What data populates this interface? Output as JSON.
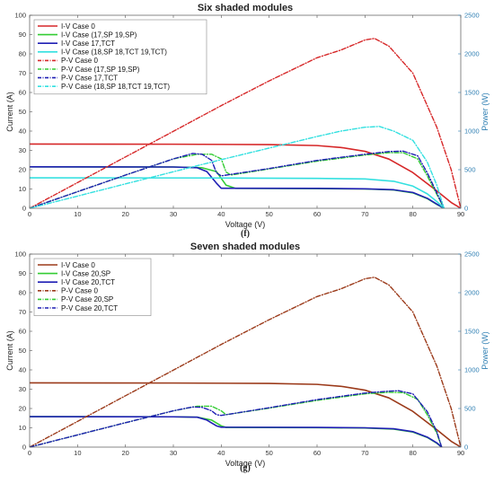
{
  "chart_data": [
    {
      "type": "line",
      "title": "Six shaded modules",
      "xlabel": "Voltage (V)",
      "ylabel": "Current (A)",
      "y2label": "Power (W)",
      "caption": "(f)",
      "xlim": [
        0,
        90
      ],
      "ylim": [
        0,
        100
      ],
      "y2lim": [
        0,
        2500
      ],
      "xticks": [
        0,
        10,
        20,
        30,
        40,
        50,
        60,
        70,
        80,
        90
      ],
      "yticks": [
        0,
        10,
        20,
        30,
        40,
        50,
        60,
        70,
        80,
        90,
        100
      ],
      "y2ticks": [
        0,
        500,
        1000,
        1500,
        2000,
        2500
      ],
      "legend_position": "top-left",
      "series": [
        {
          "name": "I-V Case 0",
          "axis": "left",
          "style": "solid",
          "color": "#d62728",
          "points": [
            [
              0,
              33.3
            ],
            [
              30,
              33.2
            ],
            [
              50,
              33.0
            ],
            [
              60,
              32.5
            ],
            [
              65,
              31.5
            ],
            [
              70,
              29.5
            ],
            [
              75,
              25.5
            ],
            [
              80,
              18.5
            ],
            [
              85,
              9
            ],
            [
              88,
              3
            ],
            [
              90,
              0
            ]
          ]
        },
        {
          "name": "I-V Case (17,SP 19,SP)",
          "axis": "left",
          "style": "solid",
          "color": "#33cc33",
          "points": [
            [
              0,
              21.5
            ],
            [
              30,
              21.4
            ],
            [
              36,
              21
            ],
            [
              39,
              19
            ],
            [
              41,
              12
            ],
            [
              43,
              10.3
            ],
            [
              60,
              10.2
            ],
            [
              70,
              10
            ],
            [
              76,
              9.5
            ],
            [
              80,
              8
            ],
            [
              83,
              5
            ],
            [
              85,
              2
            ],
            [
              86.5,
              0
            ]
          ]
        },
        {
          "name": "I-V Case 17,TCT",
          "axis": "left",
          "style": "solid",
          "color": "#1f1fb4",
          "points": [
            [
              0,
              21.5
            ],
            [
              30,
              21.4
            ],
            [
              35,
              21
            ],
            [
              37,
              19
            ],
            [
              39,
              13
            ],
            [
              40,
              10.4
            ],
            [
              60,
              10.3
            ],
            [
              70,
              10.1
            ],
            [
              76,
              9.6
            ],
            [
              80,
              8.2
            ],
            [
              83,
              5.2
            ],
            [
              85,
              2.2
            ],
            [
              86.5,
              0
            ]
          ]
        },
        {
          "name": "I-V Case (18,SP 18,TCT 19,TCT)",
          "axis": "left",
          "style": "solid",
          "color": "#33e0e0",
          "points": [
            [
              0,
              15.8
            ],
            [
              40,
              15.7
            ],
            [
              60,
              15.5
            ],
            [
              70,
              15.2
            ],
            [
              76,
              14
            ],
            [
              80,
              11.5
            ],
            [
              83,
              7.5
            ],
            [
              85,
              3.5
            ],
            [
              86.5,
              0
            ]
          ]
        },
        {
          "name": "P-V Case 0",
          "axis": "right",
          "style": "dashdot",
          "color": "#d62728",
          "points": [
            [
              0,
              0
            ],
            [
              10,
              333
            ],
            [
              20,
              665
            ],
            [
              30,
              997
            ],
            [
              40,
              1330
            ],
            [
              50,
              1650
            ],
            [
              60,
              1950
            ],
            [
              65,
              2050
            ],
            [
              70,
              2180
            ],
            [
              72,
              2200
            ],
            [
              75,
              2100
            ],
            [
              80,
              1750
            ],
            [
              85,
              1050
            ],
            [
              88,
              500
            ],
            [
              90,
              0
            ]
          ]
        },
        {
          "name": "P-V Case (17,SP 19,SP)",
          "axis": "right",
          "style": "dashdot",
          "color": "#33cc33",
          "points": [
            [
              0,
              0
            ],
            [
              10,
              215
            ],
            [
              20,
              430
            ],
            [
              30,
              640
            ],
            [
              35,
              700
            ],
            [
              38,
              700
            ],
            [
              40,
              640
            ],
            [
              41,
              470
            ],
            [
              42,
              430
            ],
            [
              50,
              510
            ],
            [
              60,
              610
            ],
            [
              70,
              690
            ],
            [
              75,
              720
            ],
            [
              78,
              720
            ],
            [
              81,
              640
            ],
            [
              83,
              420
            ],
            [
              85,
              180
            ],
            [
              86.5,
              0
            ]
          ]
        },
        {
          "name": "P-V Case 17,TCT",
          "axis": "right",
          "style": "dashdot",
          "color": "#1f1fb4",
          "points": [
            [
              0,
              0
            ],
            [
              10,
              215
            ],
            [
              20,
              430
            ],
            [
              30,
              640
            ],
            [
              34,
              710
            ],
            [
              36,
              700
            ],
            [
              38,
              620
            ],
            [
              39,
              460
            ],
            [
              40,
              420
            ],
            [
              50,
              515
            ],
            [
              60,
              620
            ],
            [
              70,
              700
            ],
            [
              75,
              735
            ],
            [
              78,
              740
            ],
            [
              81,
              680
            ],
            [
              83,
              460
            ],
            [
              85,
              200
            ],
            [
              86.5,
              0
            ]
          ]
        },
        {
          "name": "P-V Case (18,SP 18,TCT 19,TCT)",
          "axis": "right",
          "style": "dashdot",
          "color": "#33e0e0",
          "points": [
            [
              0,
              0
            ],
            [
              10,
              158
            ],
            [
              20,
              316
            ],
            [
              30,
              473
            ],
            [
              40,
              630
            ],
            [
              50,
              780
            ],
            [
              60,
              930
            ],
            [
              65,
              1000
            ],
            [
              70,
              1050
            ],
            [
              73,
              1060
            ],
            [
              76,
              1000
            ],
            [
              80,
              880
            ],
            [
              83,
              600
            ],
            [
              85,
              300
            ],
            [
              86.5,
              0
            ]
          ]
        }
      ]
    },
    {
      "type": "line",
      "title": "Seven shaded modules",
      "xlabel": "Voltage (V)",
      "ylabel": "Current (A)",
      "y2label": "Power (W)",
      "caption": "(g)",
      "xlim": [
        0,
        90
      ],
      "ylim": [
        0,
        100
      ],
      "y2lim": [
        0,
        2500
      ],
      "xticks": [
        0,
        10,
        20,
        30,
        40,
        50,
        60,
        70,
        80,
        90
      ],
      "yticks": [
        0,
        10,
        20,
        30,
        40,
        50,
        60,
        70,
        80,
        90,
        100
      ],
      "y2ticks": [
        0,
        500,
        1000,
        1500,
        2000,
        2500
      ],
      "legend_position": "top-left",
      "series": [
        {
          "name": "I-V Case 0",
          "axis": "left",
          "style": "solid",
          "color": "#9b3a1a",
          "points": [
            [
              0,
              33.3
            ],
            [
              30,
              33.2
            ],
            [
              50,
              33.0
            ],
            [
              60,
              32.5
            ],
            [
              65,
              31.5
            ],
            [
              70,
              29.5
            ],
            [
              75,
              25.5
            ],
            [
              80,
              18.5
            ],
            [
              85,
              9
            ],
            [
              88,
              3
            ],
            [
              90,
              0
            ]
          ]
        },
        {
          "name": "I-V Case 20,SP",
          "axis": "left",
          "style": "solid",
          "color": "#33cc33",
          "points": [
            [
              0,
              15.8
            ],
            [
              30,
              15.7
            ],
            [
              35,
              15.5
            ],
            [
              38,
              14
            ],
            [
              40,
              11
            ],
            [
              41,
              10.2
            ],
            [
              60,
              10.1
            ],
            [
              70,
              9.9
            ],
            [
              76,
              9.3
            ],
            [
              80,
              7.8
            ],
            [
              83,
              5
            ],
            [
              85,
              2
            ],
            [
              86,
              0
            ]
          ]
        },
        {
          "name": "I-V Case 20,TCT",
          "axis": "left",
          "style": "solid",
          "color": "#1f1fb4",
          "points": [
            [
              0,
              15.8
            ],
            [
              30,
              15.7
            ],
            [
              35,
              15.5
            ],
            [
              37,
              14
            ],
            [
              39,
              11
            ],
            [
              40,
              10.3
            ],
            [
              60,
              10.2
            ],
            [
              70,
              10
            ],
            [
              76,
              9.5
            ],
            [
              80,
              8
            ],
            [
              83,
              5.2
            ],
            [
              85,
              2.2
            ],
            [
              86,
              0
            ]
          ]
        },
        {
          "name": "P-V Case 0",
          "axis": "right",
          "style": "dashdot",
          "color": "#9b3a1a",
          "points": [
            [
              0,
              0
            ],
            [
              10,
              333
            ],
            [
              20,
              665
            ],
            [
              30,
              997
            ],
            [
              40,
              1330
            ],
            [
              50,
              1650
            ],
            [
              60,
              1950
            ],
            [
              65,
              2050
            ],
            [
              70,
              2180
            ],
            [
              72,
              2200
            ],
            [
              75,
              2100
            ],
            [
              80,
              1750
            ],
            [
              85,
              1050
            ],
            [
              88,
              500
            ],
            [
              90,
              0
            ]
          ]
        },
        {
          "name": "P-V Case 20,SP",
          "axis": "right",
          "style": "dashdot",
          "color": "#33cc33",
          "points": [
            [
              0,
              0
            ],
            [
              10,
              158
            ],
            [
              20,
              316
            ],
            [
              30,
              470
            ],
            [
              35,
              530
            ],
            [
              38,
              530
            ],
            [
              40,
              470
            ],
            [
              41,
              420
            ],
            [
              50,
              505
            ],
            [
              60,
              605
            ],
            [
              70,
              690
            ],
            [
              75,
              710
            ],
            [
              78,
              705
            ],
            [
              81,
              620
            ],
            [
              83,
              420
            ],
            [
              85,
              180
            ],
            [
              86,
              0
            ]
          ]
        },
        {
          "name": "P-V Case 20,TCT",
          "axis": "right",
          "style": "dashdot",
          "color": "#1f1fb4",
          "points": [
            [
              0,
              0
            ],
            [
              10,
              158
            ],
            [
              20,
              316
            ],
            [
              30,
              470
            ],
            [
              34,
              520
            ],
            [
              36,
              515
            ],
            [
              38,
              470
            ],
            [
              39,
              420
            ],
            [
              40,
              410
            ],
            [
              50,
              510
            ],
            [
              60,
              615
            ],
            [
              70,
              700
            ],
            [
              75,
              725
            ],
            [
              77,
              730
            ],
            [
              80,
              690
            ],
            [
              83,
              460
            ],
            [
              85,
              200
            ],
            [
              86,
              0
            ]
          ]
        }
      ]
    }
  ]
}
